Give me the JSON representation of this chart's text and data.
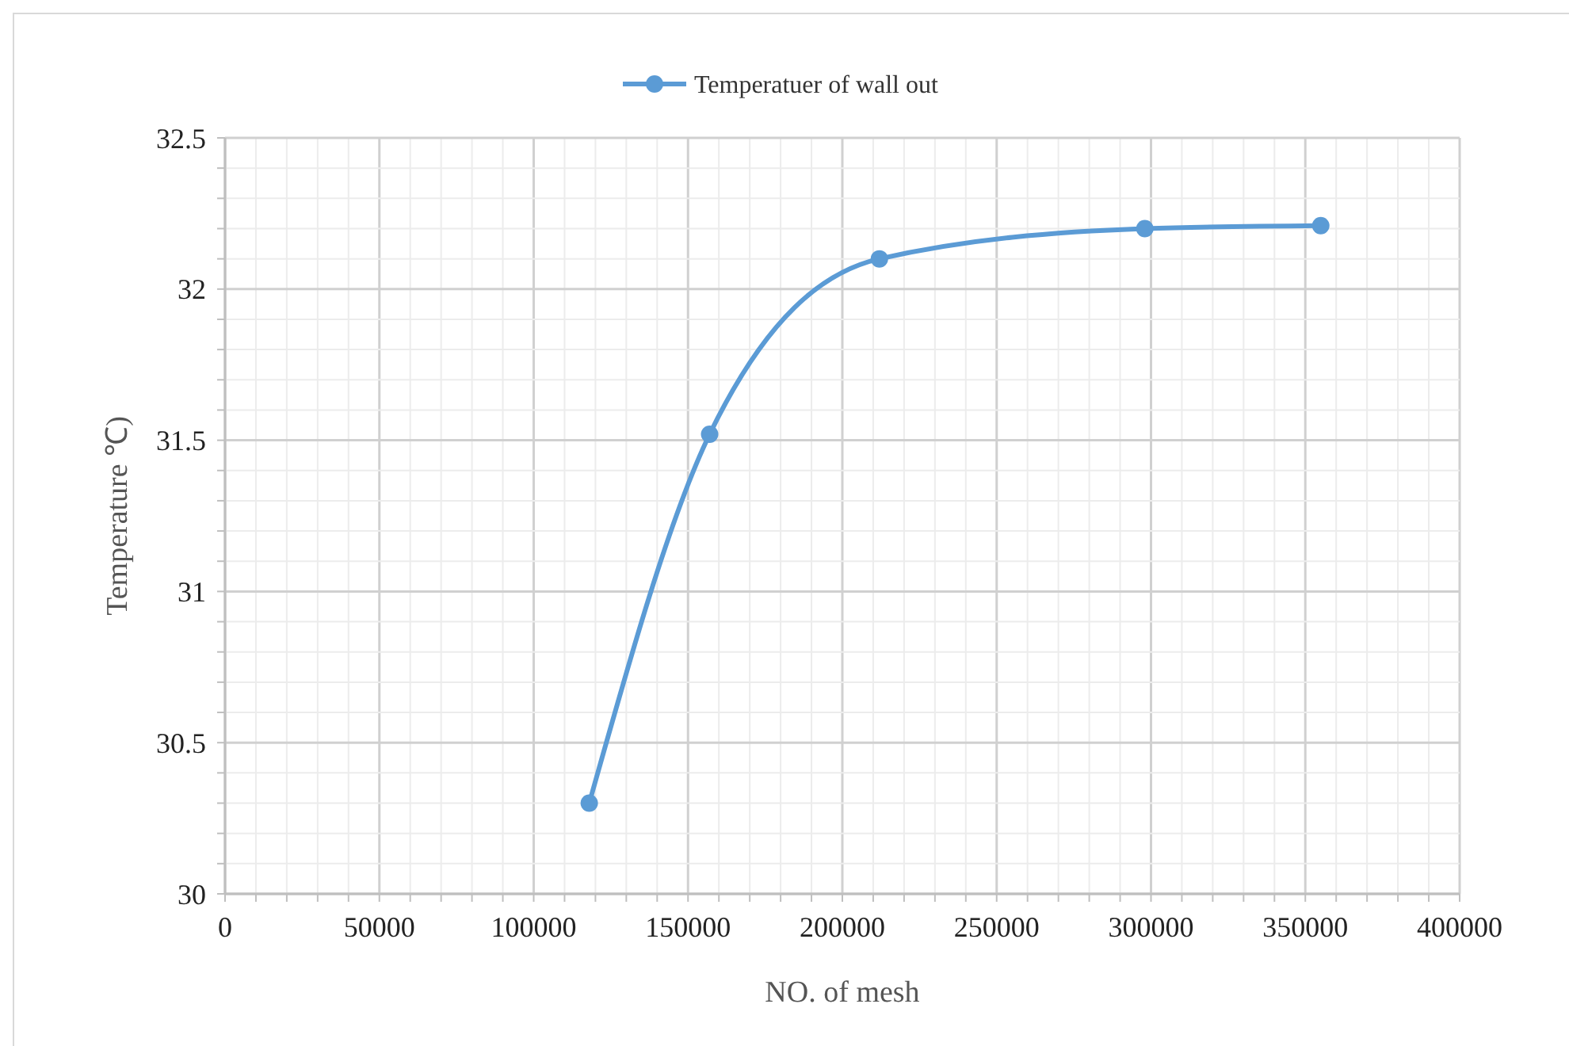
{
  "chart_data": {
    "type": "line",
    "xlabel": "NO. of mesh",
    "ylabel": "Temperature ℃)",
    "x": [
      118000,
      157000,
      212000,
      298000,
      355000
    ],
    "series": [
      {
        "name": "Temperatuer of wall out",
        "color": "#5b9bd5",
        "values": [
          30.3,
          31.52,
          32.1,
          32.2,
          32.21
        ]
      }
    ],
    "xlim": [
      0,
      400000
    ],
    "xticks": [
      0,
      {
        "value": 10000,
        "label": null
      },
      {
        "value": 20000,
        "label": null
      },
      {
        "value": 30000,
        "label": null
      },
      {
        "value": 40000,
        "label": null
      },
      50000,
      {
        "value": 60000,
        "label": null
      },
      {
        "value": 70000,
        "label": null
      },
      {
        "value": 80000,
        "label": null
      },
      {
        "value": 90000,
        "label": null
      },
      100000,
      {
        "value": 110000,
        "label": null
      },
      {
        "value": 120000,
        "label": null
      },
      {
        "value": 130000,
        "label": null
      },
      {
        "value": 140000,
        "label": null
      },
      150000,
      {
        "value": 160000,
        "label": null
      },
      {
        "value": 170000,
        "label": null
      },
      {
        "value": 180000,
        "label": null
      },
      {
        "value": 190000,
        "label": null
      },
      200000,
      {
        "value": 210000,
        "label": null
      },
      {
        "value": 220000,
        "label": null
      },
      {
        "value": 230000,
        "label": null
      },
      {
        "value": 240000,
        "label": null
      },
      250000,
      {
        "value": 260000,
        "label": null
      },
      {
        "value": 270000,
        "label": null
      },
      {
        "value": 280000,
        "label": null
      },
      {
        "value": 290000,
        "label": null
      },
      300000,
      {
        "value": 310000,
        "label": null
      },
      {
        "value": 320000,
        "label": null
      },
      {
        "value": 330000,
        "label": null
      },
      {
        "value": 340000,
        "label": null
      },
      350000,
      {
        "value": 360000,
        "label": null
      },
      {
        "value": 370000,
        "label": null
      },
      {
        "value": 380000,
        "label": null
      },
      {
        "value": 390000,
        "label": null
      },
      400000
    ],
    "ylim": [
      30,
      32.5
    ],
    "yticks": [
      30,
      {
        "value": 30.1,
        "label": null
      },
      {
        "value": 30.2,
        "label": null
      },
      {
        "value": 30.3,
        "label": null
      },
      {
        "value": 30.4,
        "label": null
      },
      30.5,
      {
        "value": 30.6,
        "label": null
      },
      {
        "value": 30.7,
        "label": null
      },
      {
        "value": 30.8,
        "label": null
      },
      {
        "value": 30.9,
        "label": null
      },
      31,
      {
        "value": 31.1,
        "label": null
      },
      {
        "value": 31.2,
        "label": null
      },
      {
        "value": 31.3,
        "label": null
      },
      {
        "value": 31.4,
        "label": null
      },
      31.5,
      {
        "value": 31.6,
        "label": null
      },
      {
        "value": 31.7,
        "label": null
      },
      {
        "value": 31.8,
        "label": null
      },
      {
        "value": 31.9,
        "label": null
      },
      32,
      {
        "value": 32.1,
        "label": null
      },
      {
        "value": 32.2,
        "label": null
      },
      {
        "value": 32.3,
        "label": null
      },
      {
        "value": 32.4,
        "label": null
      },
      32.5
    ],
    "grid": true,
    "legend": "top",
    "marker": "circle",
    "line_style": "solid"
  }
}
